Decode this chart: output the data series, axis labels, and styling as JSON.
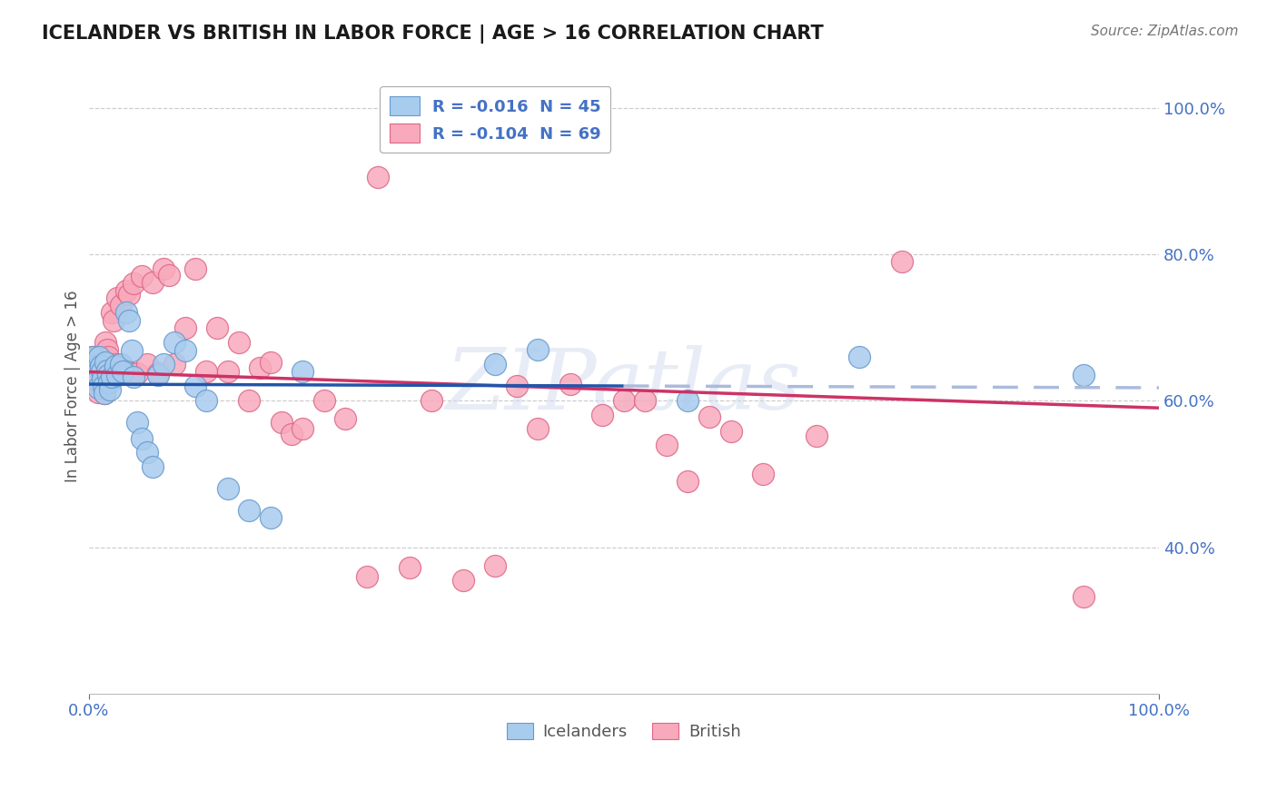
{
  "title": "ICELANDER VS BRITISH IN LABOR FORCE | AGE > 16 CORRELATION CHART",
  "source": "Source: ZipAtlas.com",
  "ylabel": "In Labor Force | Age > 16",
  "xlim": [
    0.0,
    1.0
  ],
  "ylim": [
    0.2,
    1.04
  ],
  "ice_color": "#A8CCEE",
  "ice_edge_color": "#6699CC",
  "brit_color": "#F8AABC",
  "brit_edge_color": "#DD6688",
  "ice_line_color": "#2255AA",
  "brit_line_color": "#CC3366",
  "ice_r": "-0.016",
  "ice_n": "45",
  "brit_r": "-0.104",
  "brit_n": "69",
  "watermark": "ZIPatlas",
  "ice_x": [
    0.003,
    0.005,
    0.006,
    0.007,
    0.008,
    0.009,
    0.01,
    0.011,
    0.012,
    0.013,
    0.014,
    0.015,
    0.016,
    0.017,
    0.018,
    0.019,
    0.02,
    0.022,
    0.025,
    0.027,
    0.03,
    0.032,
    0.035,
    0.038,
    0.04,
    0.042,
    0.045,
    0.05,
    0.055,
    0.06,
    0.065,
    0.07,
    0.08,
    0.09,
    0.1,
    0.11,
    0.13,
    0.15,
    0.17,
    0.2,
    0.38,
    0.42,
    0.56,
    0.72,
    0.93
  ],
  "ice_y": [
    0.65,
    0.66,
    0.648,
    0.638,
    0.628,
    0.618,
    0.66,
    0.648,
    0.64,
    0.63,
    0.62,
    0.61,
    0.652,
    0.641,
    0.635,
    0.625,
    0.615,
    0.632,
    0.648,
    0.635,
    0.65,
    0.64,
    0.72,
    0.71,
    0.668,
    0.632,
    0.57,
    0.548,
    0.53,
    0.51,
    0.635,
    0.65,
    0.68,
    0.668,
    0.62,
    0.6,
    0.48,
    0.45,
    0.44,
    0.64,
    0.65,
    0.67,
    0.6,
    0.66,
    0.635
  ],
  "brit_x": [
    0.003,
    0.005,
    0.006,
    0.007,
    0.008,
    0.009,
    0.01,
    0.011,
    0.012,
    0.013,
    0.014,
    0.015,
    0.016,
    0.017,
    0.018,
    0.019,
    0.02,
    0.022,
    0.023,
    0.025,
    0.027,
    0.03,
    0.032,
    0.035,
    0.038,
    0.04,
    0.042,
    0.045,
    0.05,
    0.055,
    0.06,
    0.065,
    0.07,
    0.075,
    0.08,
    0.09,
    0.1,
    0.11,
    0.12,
    0.13,
    0.14,
    0.15,
    0.16,
    0.17,
    0.18,
    0.19,
    0.2,
    0.22,
    0.24,
    0.26,
    0.27,
    0.3,
    0.32,
    0.35,
    0.38,
    0.4,
    0.42,
    0.45,
    0.48,
    0.5,
    0.52,
    0.54,
    0.56,
    0.58,
    0.6,
    0.63,
    0.68,
    0.76,
    0.93
  ],
  "brit_y": [
    0.66,
    0.652,
    0.642,
    0.632,
    0.622,
    0.612,
    0.66,
    0.65,
    0.64,
    0.63,
    0.62,
    0.61,
    0.68,
    0.67,
    0.66,
    0.65,
    0.64,
    0.72,
    0.71,
    0.65,
    0.74,
    0.73,
    0.645,
    0.75,
    0.745,
    0.638,
    0.76,
    0.638,
    0.77,
    0.65,
    0.762,
    0.638,
    0.78,
    0.772,
    0.65,
    0.7,
    0.78,
    0.64,
    0.7,
    0.64,
    0.68,
    0.6,
    0.645,
    0.652,
    0.57,
    0.555,
    0.562,
    0.6,
    0.575,
    0.36,
    0.905,
    0.372,
    0.6,
    0.355,
    0.375,
    0.62,
    0.562,
    0.622,
    0.58,
    0.6,
    0.6,
    0.54,
    0.49,
    0.578,
    0.558,
    0.5,
    0.552,
    0.79,
    0.332
  ]
}
